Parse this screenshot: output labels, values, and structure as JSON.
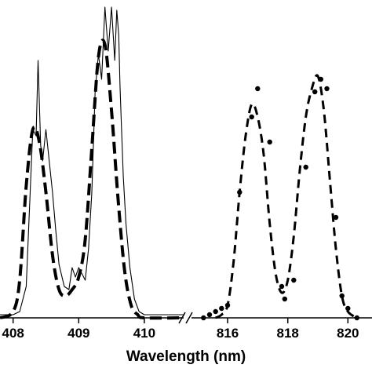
{
  "chart_data": {
    "type": "line",
    "title": "",
    "xlabel": "Wavelength (nm)",
    "ylabel": "",
    "axis_break": true,
    "grid": false,
    "legend": "none",
    "colors": {
      "line": "#000000",
      "marker": "#000000"
    },
    "panels": [
      {
        "xlim": [
          407.8,
          410.6
        ],
        "ticks": [
          408,
          409,
          410
        ],
        "tick_labels": [
          "408",
          "409",
          "410"
        ],
        "series": [
          {
            "style": "solid-noisy",
            "x": [
              407.8,
              408.0,
              408.1,
              408.2,
              408.25,
              408.3,
              408.35,
              408.38,
              408.42,
              408.45,
              408.5,
              408.55,
              408.6,
              408.65,
              408.7,
              408.78,
              408.85,
              408.9,
              408.95,
              409.0,
              409.05,
              409.1,
              409.15,
              409.2,
              409.25,
              409.3,
              409.35,
              409.4,
              409.45,
              409.5,
              409.55,
              409.58,
              409.61,
              409.63,
              409.65,
              409.68,
              409.72,
              409.78,
              409.85,
              409.92,
              410.0,
              410.2,
              410.6
            ],
            "y": [
              0.01,
              0.01,
              0.02,
              0.1,
              0.35,
              0.6,
              0.58,
              0.82,
              0.55,
              0.5,
              0.6,
              0.5,
              0.4,
              0.28,
              0.17,
              0.1,
              0.09,
              0.16,
              0.13,
              0.16,
              0.14,
              0.12,
              0.22,
              0.4,
              0.72,
              0.84,
              0.76,
              0.99,
              0.85,
              0.99,
              0.82,
              0.98,
              0.9,
              0.74,
              0.62,
              0.45,
              0.3,
              0.16,
              0.06,
              0.02,
              0.01,
              0.01,
              0.01
            ]
          },
          {
            "style": "long-dash",
            "x": [
              407.8,
              408.0,
              408.1,
              408.2,
              408.3,
              408.4,
              408.5,
              408.6,
              408.7,
              408.8,
              408.9,
              409.0,
              409.1,
              409.2,
              409.3,
              409.4,
              409.5,
              409.6,
              409.7,
              409.8,
              409.9,
              410.0,
              410.6
            ],
            "y": [
              0.0,
              0.02,
              0.12,
              0.42,
              0.6,
              0.56,
              0.4,
              0.2,
              0.09,
              0.07,
              0.09,
              0.13,
              0.25,
              0.54,
              0.83,
              0.87,
              0.66,
              0.38,
              0.15,
              0.04,
              0.01,
              0.0,
              0.0
            ]
          }
        ]
      },
      {
        "xlim": [
          814.8,
          820.8
        ],
        "ticks": [
          816,
          818,
          820
        ],
        "tick_labels": [
          "816",
          "818",
          "820"
        ],
        "series": [
          {
            "style": "markers",
            "x": [
              815.2,
              815.4,
              815.6,
              815.8,
              816.0,
              816.4,
              816.8,
              817.0,
              817.4,
              817.8,
              817.9,
              818.2,
              818.6,
              818.9,
              819.1,
              819.3,
              819.6,
              819.8,
              820.0,
              820.3
            ],
            "y": [
              0.0,
              0.01,
              0.02,
              0.03,
              0.04,
              0.4,
              0.64,
              0.73,
              0.56,
              0.1,
              0.06,
              0.12,
              0.48,
              0.72,
              0.76,
              0.73,
              0.32,
              0.07,
              0.03,
              0.0
            ]
          },
          {
            "style": "dash",
            "x": [
              815.6,
              815.8,
              816.0,
              816.2,
              816.4,
              816.6,
              816.8,
              817.0,
              817.2,
              817.4,
              817.6,
              817.8,
              818.0,
              818.2,
              818.4,
              818.6,
              818.8,
              819.0,
              819.2,
              819.4,
              819.6,
              819.8,
              820.0,
              820.3
            ],
            "y": [
              0.0,
              0.01,
              0.04,
              0.18,
              0.4,
              0.58,
              0.68,
              0.64,
              0.52,
              0.3,
              0.14,
              0.08,
              0.12,
              0.26,
              0.47,
              0.64,
              0.73,
              0.77,
              0.66,
              0.44,
              0.22,
              0.07,
              0.02,
              0.0
            ]
          }
        ]
      }
    ]
  }
}
